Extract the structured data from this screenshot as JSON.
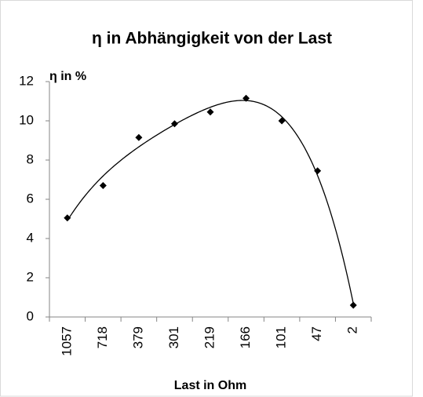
{
  "chart_data": {
    "type": "line",
    "title": "η in Abhängigkeit von der Last",
    "y_label": "η in %",
    "x_label": "Last in Ohm",
    "categories": [
      "1057",
      "718",
      "379",
      "301",
      "219",
      "166",
      "101",
      "47",
      "2"
    ],
    "values": [
      5.05,
      6.7,
      9.15,
      9.85,
      10.45,
      11.15,
      10.0,
      7.45,
      0.6
    ],
    "color": "#000000",
    "marker": "diamond",
    "trendline": "polynomial",
    "ylim": [
      0,
      12
    ],
    "yticks": [
      0,
      2,
      4,
      6,
      8,
      10,
      12
    ]
  }
}
